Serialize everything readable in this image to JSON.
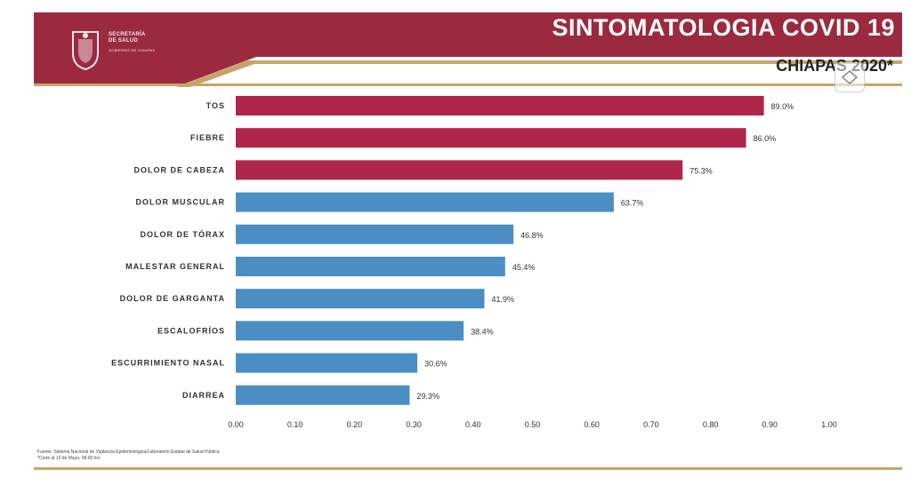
{
  "header": {
    "title": "SINTOMATOLOGIA COVID 19",
    "subtitle": "CHIAPAS 2020*",
    "org_line1": "SECRETARÍA",
    "org_line2": "DE SALUD",
    "org_sub": "GOBIERNO DE CHIAPAS"
  },
  "footnotes": {
    "source": "Fuente: Sistema Nacional de Vigilancia Epidemiológica/Laboratorio Estatal de Salud Pública",
    "cutoff": "*Corte al 12 de Mayo, 09:00 hrs"
  },
  "colors": {
    "header": "#9b2a3f",
    "accent_red": "#b0254a",
    "accent_blue": "#4a8ec4",
    "gold": "#c9a46a"
  },
  "chart_data": {
    "type": "bar",
    "orientation": "horizontal",
    "categories": [
      "TOS",
      "FIEBRE",
      "DOLOR DE CABEZA",
      "DOLOR MUSCULAR",
      "DOLOR DE TÓRAX",
      "MALESTAR GENERAL",
      "DOLOR DE GARGANTA",
      "ESCALOFRÍOS",
      "ESCURRIMIENTO NASAL",
      "DIARREA"
    ],
    "values": [
      0.89,
      0.86,
      0.753,
      0.637,
      0.468,
      0.454,
      0.419,
      0.384,
      0.306,
      0.293
    ],
    "labels": [
      "89.0%",
      "86.0%",
      "75.3%",
      "63.7%",
      "46.8%",
      "45.4%",
      "41.9%",
      "38.4%",
      "30.6%",
      "29.3%"
    ],
    "bar_colors": [
      "#b0254a",
      "#b0254a",
      "#b0254a",
      "#4a8ec4",
      "#4a8ec4",
      "#4a8ec4",
      "#4a8ec4",
      "#4a8ec4",
      "#4a8ec4",
      "#4a8ec4"
    ],
    "xlim": [
      0,
      1.0
    ],
    "xticks": [
      "0.00",
      "0.10",
      "0.20",
      "0.30",
      "0.40",
      "0.50",
      "0.60",
      "0.70",
      "0.80",
      "0.90",
      "1.00"
    ],
    "grid": false,
    "legend": "none"
  }
}
